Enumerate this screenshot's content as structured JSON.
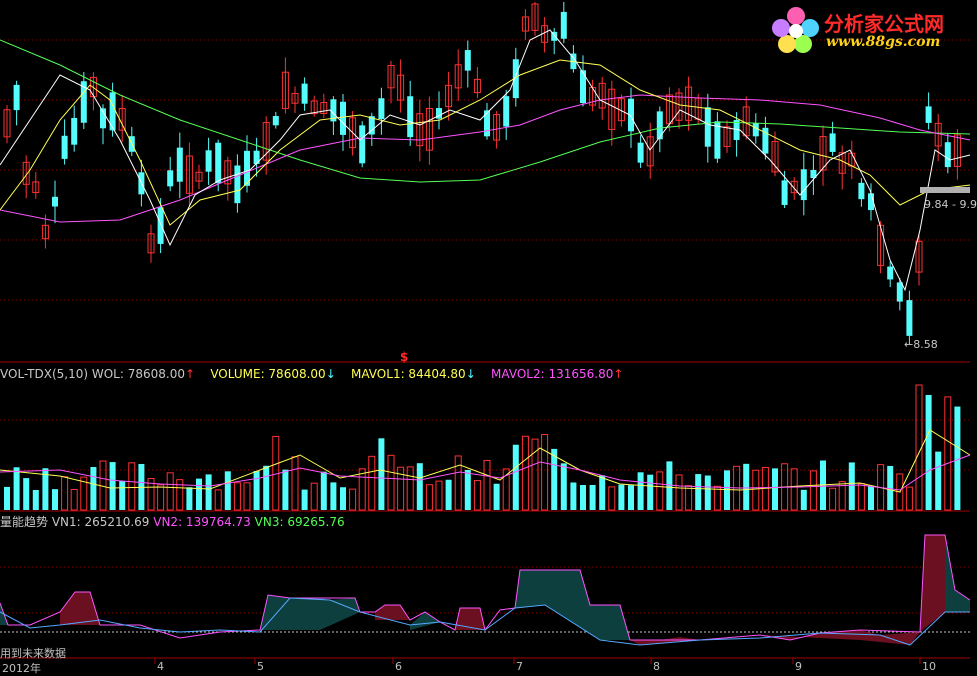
{
  "logo": {
    "title": "分析家公式网",
    "site": "www.88gs.com"
  },
  "price_panel": {
    "price_box_label": "9.84 - 9.9",
    "low_label": "8.58",
    "signal_mark": "$"
  },
  "vol_header": {
    "name": "VOL-TDX(5,10)",
    "wol": "WOL: 78608.00",
    "volume": "VOLUME: 78608.00",
    "mavol1": "MAVOL1: 84404.80",
    "mavol2": "MAVOL2: 131656.80",
    "up_arrow": "↑",
    "down_arrow": "↓"
  },
  "trend_header": {
    "name": "量能趋势",
    "vn1": "VN1: 265210.69",
    "vn2": "VN2: 139764.73",
    "vn3": "VN3: 69265.76"
  },
  "footer": {
    "note": "用到未来数据",
    "year": "2012年"
  },
  "colors": {
    "up": "#ff3232",
    "down": "#54fcfc",
    "ma_white": "#ffffff",
    "ma_yellow": "#ffff54",
    "ma_magenta": "#ff54ff",
    "ma_green": "#54ff54",
    "grid": "#8b0000",
    "area_red": "#6a1020",
    "area_teal": "#0d3f3f"
  },
  "chart_data": [
    {
      "type": "candlestick",
      "low_marker": 8.58,
      "series": [
        "MA white",
        "MA yellow",
        "MA magenta",
        "MA green"
      ]
    },
    {
      "type": "bar",
      "name": "VOL-TDX(5,10)",
      "series": [
        {
          "name": "VOLUME",
          "latest": 78608.0
        },
        {
          "name": "MAVOL1",
          "latest": 84404.8
        },
        {
          "name": "MAVOL2",
          "latest": 131656.8
        }
      ]
    },
    {
      "type": "area",
      "name": "量能趋势",
      "series": [
        {
          "name": "VN1",
          "latest": 265210.69
        },
        {
          "name": "VN2",
          "latest": 139764.73
        },
        {
          "name": "VN3",
          "latest": 69265.76
        }
      ]
    }
  ],
  "x_axis": {
    "ticks": [
      "4",
      "5",
      "6",
      "7",
      "8",
      "9",
      "10"
    ]
  }
}
